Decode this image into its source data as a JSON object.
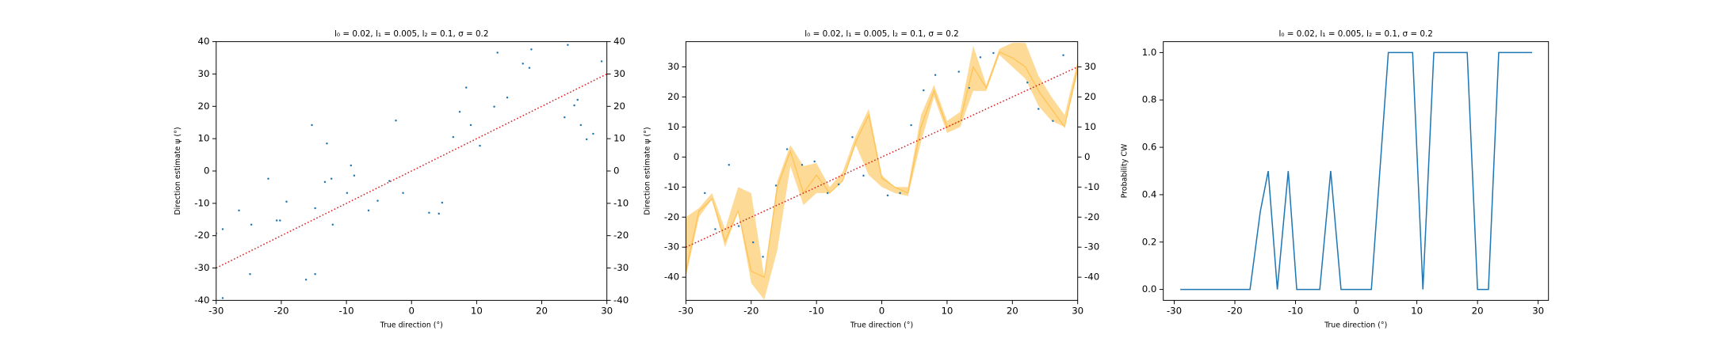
{
  "chart_data": [
    {
      "type": "scatter",
      "title": "l₀ = 0.02, l₁ = 0.005, l₂ = 0.1, σ = 0.2",
      "x_label": "True direction (°)",
      "y_label": "Direction estimate ψ (°)",
      "xlim": [
        -30,
        30
      ],
      "xticks": [
        -30,
        -20,
        -10,
        0,
        10,
        20,
        30
      ],
      "ylim": [
        -40,
        40
      ],
      "yticks": [
        -40,
        -30,
        -20,
        -10,
        0,
        10,
        20,
        30,
        40
      ],
      "y2lim": [
        -40,
        40
      ],
      "y2ticks": [
        -40,
        -30,
        -20,
        -10,
        0,
        10,
        20,
        30,
        40
      ],
      "color": "#1f77b4",
      "x": [
        -30,
        -29,
        -29,
        -26.5,
        -24.6,
        -24.8,
        -22,
        -20.7,
        -20.2,
        -19.2,
        -16.2,
        -15.3,
        -14.8,
        -14.8,
        -13.3,
        -13,
        -12.3,
        -12.1,
        -9.9,
        -9.3,
        -8.8,
        -6.6,
        -5.2,
        -3.4,
        -2.4,
        -1.3,
        2.7,
        4.2,
        4.7,
        6.4,
        7.4,
        8.4,
        9.1,
        10.5,
        12.7,
        13.2,
        14.7,
        17.1,
        18.1,
        18.4,
        23.5,
        24,
        25,
        25.5,
        26,
        26.9,
        27.9,
        29.2
      ],
      "values": [
        -19.3,
        -18,
        -39.3,
        -12.2,
        -16.6,
        -31.9,
        -2.4,
        -15.3,
        -15.3,
        -9.5,
        -33.6,
        14.2,
        -11.5,
        -31.9,
        -3.4,
        8.5,
        -2.4,
        -16.6,
        -6.8,
        1.7,
        -1.4,
        -12.2,
        -9.2,
        -3.1,
        15.6,
        -6.8,
        -12.9,
        -13.2,
        -9.8,
        10.5,
        18.3,
        25.8,
        14.2,
        7.8,
        19.9,
        36.6,
        22.7,
        33.2,
        31.9,
        37.6,
        16.6,
        39,
        20.3,
        22,
        14.2,
        9.8,
        11.5,
        33.9
      ],
      "reference": {
        "x": [
          -30,
          30
        ],
        "values": [
          -30,
          30
        ],
        "color": "#d62728"
      }
    },
    {
      "type": "scatter",
      "title": "l₀ = 0.02, l₁ = 0.005, l₂ = 0.1, σ = 0.2",
      "x_label": "True direction (°)",
      "y_label": "Direction estimate ψ (°)",
      "xlim": [
        -30,
        30
      ],
      "xticks": [
        -30,
        -20,
        -10,
        0,
        10,
        20,
        30
      ],
      "ylim": [
        -47.7,
        38.4
      ],
      "yticks": [
        -40,
        -30,
        -20,
        -10,
        0,
        10,
        20,
        30
      ],
      "y2lim": [
        -47.7,
        38.4
      ],
      "y2ticks": [
        -40,
        -30,
        -20,
        -10,
        0,
        10,
        20,
        30
      ],
      "color": "#1f77b4",
      "x": [
        -27.1,
        -25.5,
        -23.4,
        -21.9,
        -19.7,
        -18.2,
        -16.2,
        -14.5,
        -12.2,
        -10.3,
        -8.3,
        -6.6,
        -4.5,
        -2.8,
        0.9,
        2.8,
        4.5,
        6.4,
        8.2,
        11.8,
        13.4,
        15.1,
        17.1,
        22.3,
        24,
        26.2,
        27.8
      ],
      "values": [
        -12,
        -24,
        -2.6,
        -23,
        -28.4,
        -33.2,
        -9.5,
        2.6,
        -2.6,
        -1.5,
        -12,
        -9.1,
        6.6,
        -6.2,
        -12.8,
        -12,
        10.6,
        22.2,
        27.3,
        28.4,
        23,
        33.2,
        34.6,
        24.8,
        16,
        12,
        33.9
      ],
      "band": {
        "color": "#fdb62f",
        "x": [
          -30,
          -28,
          -26,
          -24,
          -22,
          -20,
          -18,
          -16,
          -14,
          -12,
          -10,
          -8,
          -6,
          -4,
          -2,
          0,
          2,
          4,
          6,
          8,
          10,
          12,
          14,
          16,
          18,
          20,
          22,
          24,
          26,
          28,
          30
        ],
        "values": [
          -38,
          -18,
          -14,
          -28,
          -18,
          -38,
          -40,
          -10,
          2,
          -12,
          -6,
          -12,
          -8,
          5,
          14,
          -7,
          -10,
          -12,
          10,
          22,
          10,
          12,
          30,
          23,
          35,
          33,
          30,
          22,
          16,
          10,
          30
        ],
        "lower": [
          -40,
          -20,
          -14,
          -30,
          -18,
          -42,
          -47.5,
          -31,
          -3,
          -16,
          -12,
          -12,
          -8,
          4,
          -6,
          -10,
          -12,
          -13,
          5,
          20,
          8,
          10,
          22,
          22,
          34,
          30,
          26,
          17,
          12,
          10,
          28
        ],
        "upper": [
          -20,
          -17,
          -12,
          -24,
          -10,
          -12,
          -40,
          -8,
          4,
          -3,
          -2,
          -10,
          -5,
          7,
          16,
          -6,
          -10,
          -10,
          14,
          24,
          12,
          15,
          37,
          24,
          36,
          38,
          38,
          27,
          20,
          14,
          32
        ]
      },
      "reference": {
        "x": [
          -30,
          30
        ],
        "values": [
          -30,
          30
        ],
        "color": "#d62728"
      }
    },
    {
      "type": "line",
      "title": "l₀ = 0.02, l₁ = 0.005, l₂ = 0.1, σ = 0.2",
      "x_label": "True direction (°)",
      "y_label": "Probability CW",
      "xlim": [
        -31.8,
        31.7
      ],
      "xticks": [
        -30,
        -20,
        -10,
        0,
        10,
        20,
        30
      ],
      "ylim": [
        -0.046,
        1.046
      ],
      "yticks": [
        {
          "value": 0,
          "label": "0.0"
        },
        {
          "value": 0.2,
          "label": "0.2"
        },
        {
          "value": 0.4,
          "label": "0.4"
        },
        {
          "value": 0.6,
          "label": "0.6"
        },
        {
          "value": 0.8,
          "label": "0.8"
        },
        {
          "value": 1,
          "label": "1.0"
        }
      ],
      "color": "#1f77b4",
      "x": [
        -29,
        -17.5,
        -15.8,
        -14.5,
        -13,
        -11.2,
        -9.8,
        -6,
        -4.2,
        -2.5,
        2.5,
        5.3,
        9.3,
        11,
        12.8,
        18.3,
        20,
        21.8,
        23.5,
        29
      ],
      "values": [
        0,
        0,
        0.33,
        0.5,
        0,
        0.5,
        0,
        0,
        0.5,
        0,
        0,
        1,
        1,
        0,
        1,
        1,
        0,
        0,
        1,
        1
      ]
    }
  ]
}
